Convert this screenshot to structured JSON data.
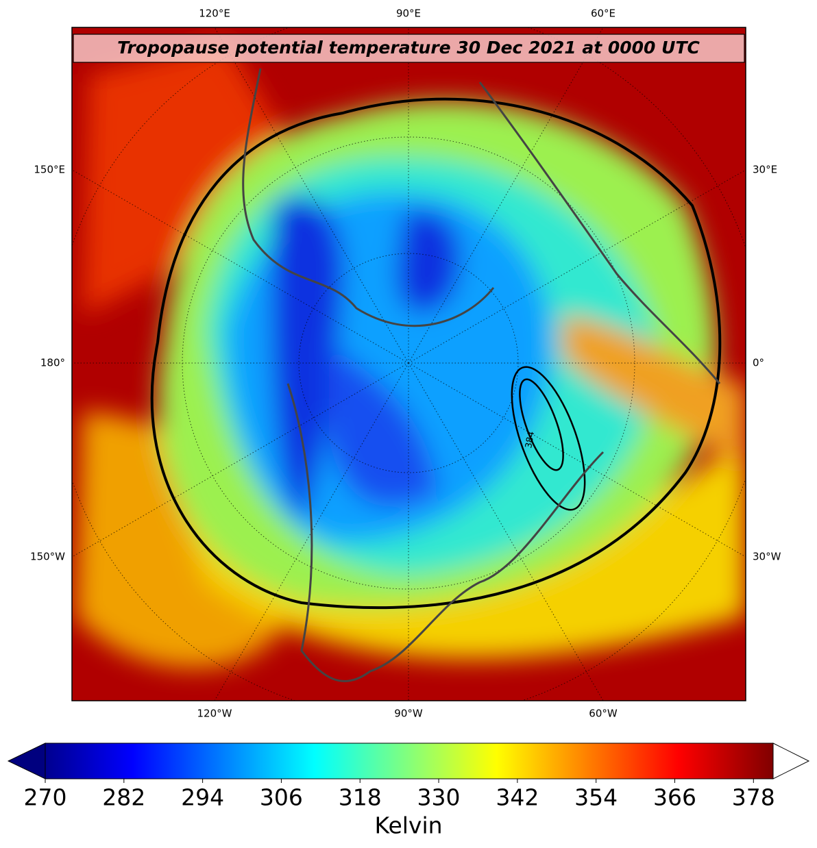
{
  "map": {
    "title": "Tropopause potential temperature 30 Dec 2021 at 0000 UTC",
    "longitude_labels": {
      "top": [
        "120°E",
        "90°E",
        "60°E"
      ],
      "bottom": [
        "120°W",
        "90°W",
        "60°W"
      ],
      "left": [
        "150°E",
        "180°",
        "150°W"
      ],
      "right": [
        "30°E",
        "0°",
        "30°W"
      ]
    },
    "contour_label": "384"
  },
  "colorbar": {
    "label": "Kelvin",
    "range": [
      270,
      381
    ],
    "ticks": [
      270,
      282,
      294,
      306,
      318,
      330,
      342,
      354,
      366,
      378
    ],
    "extend": "both"
  }
}
